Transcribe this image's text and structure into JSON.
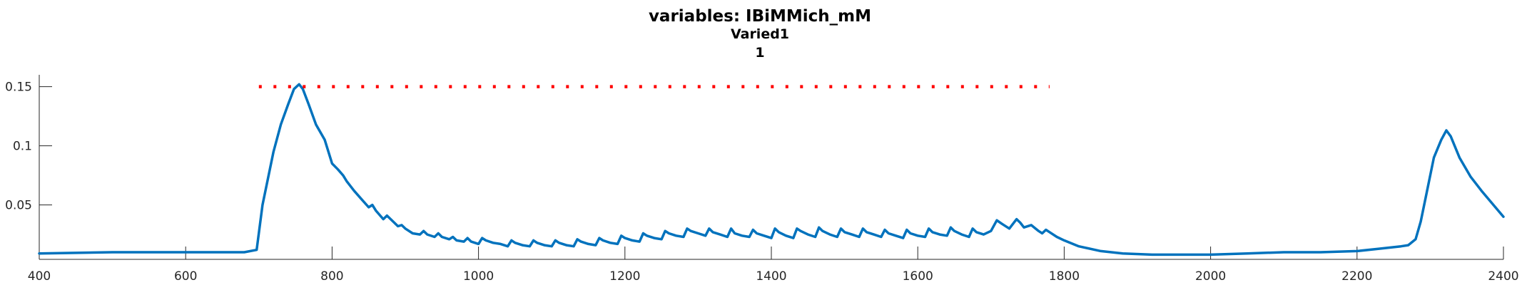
{
  "chart_data": {
    "type": "line",
    "title": [
      "variables: IBiMMich_mM",
      "Varied1",
      "1"
    ],
    "xlabel": "",
    "ylabel": "",
    "xlim": [
      400,
      2400
    ],
    "ylim": [
      0.004,
      0.16
    ],
    "xticks": [
      400,
      600,
      800,
      1000,
      1200,
      1400,
      1600,
      1800,
      2000,
      2200,
      2400
    ],
    "xtick_labels": [
      "400",
      "600",
      "800",
      "1000",
      "1200",
      "1400",
      "1600",
      "1800",
      "2000",
      "2200",
      "2400"
    ],
    "yticks": [
      0.05,
      0.1,
      0.15
    ],
    "ytick_labels": [
      "0.05",
      "0.1",
      "0.15"
    ],
    "grid": false,
    "colors": {
      "series": "#0072BD",
      "reference": "#FF0000",
      "axis": "#262626"
    },
    "series": [
      {
        "style": "solid",
        "x": [
          400,
          500,
          600,
          680,
          697,
          705,
          720,
          730,
          740,
          748,
          755,
          760,
          768,
          778,
          790,
          800,
          808,
          815,
          820,
          830,
          840,
          850,
          855,
          860,
          870,
          875,
          880,
          890,
          895,
          900,
          910,
          920,
          925,
          930,
          940,
          945,
          950,
          960,
          965,
          970,
          980,
          985,
          990,
          1000,
          1005,
          1010,
          1020,
          1030,
          1040,
          1045,
          1050,
          1060,
          1070,
          1075,
          1080,
          1090,
          1100,
          1105,
          1110,
          1120,
          1130,
          1135,
          1140,
          1150,
          1160,
          1165,
          1170,
          1180,
          1190,
          1195,
          1200,
          1210,
          1220,
          1225,
          1230,
          1240,
          1250,
          1255,
          1260,
          1270,
          1280,
          1285,
          1290,
          1300,
          1310,
          1315,
          1320,
          1330,
          1340,
          1345,
          1350,
          1360,
          1370,
          1375,
          1380,
          1390,
          1400,
          1405,
          1410,
          1420,
          1430,
          1435,
          1440,
          1450,
          1460,
          1465,
          1470,
          1480,
          1490,
          1495,
          1500,
          1510,
          1520,
          1525,
          1530,
          1540,
          1550,
          1555,
          1560,
          1570,
          1580,
          1585,
          1590,
          1600,
          1610,
          1615,
          1620,
          1630,
          1640,
          1645,
          1650,
          1660,
          1670,
          1675,
          1680,
          1690,
          1700,
          1708,
          1715,
          1725,
          1735,
          1740,
          1745,
          1755,
          1765,
          1770,
          1775,
          1780,
          1790,
          1800,
          1820,
          1850,
          1880,
          1920,
          1960,
          2000,
          2050,
          2100,
          2150,
          2200,
          2230,
          2260,
          2270,
          2280,
          2287,
          2295,
          2305,
          2315,
          2322,
          2328,
          2340,
          2355,
          2370,
          2385,
          2400
        ],
        "y": [
          0.009,
          0.01,
          0.01,
          0.01,
          0.012,
          0.05,
          0.095,
          0.118,
          0.135,
          0.148,
          0.152,
          0.148,
          0.135,
          0.118,
          0.105,
          0.085,
          0.08,
          0.075,
          0.07,
          0.062,
          0.055,
          0.048,
          0.05,
          0.045,
          0.038,
          0.041,
          0.038,
          0.032,
          0.033,
          0.03,
          0.026,
          0.025,
          0.028,
          0.025,
          0.023,
          0.026,
          0.023,
          0.021,
          0.023,
          0.02,
          0.019,
          0.022,
          0.019,
          0.017,
          0.022,
          0.02,
          0.018,
          0.017,
          0.015,
          0.02,
          0.018,
          0.016,
          0.015,
          0.02,
          0.018,
          0.016,
          0.015,
          0.02,
          0.018,
          0.016,
          0.015,
          0.021,
          0.019,
          0.017,
          0.016,
          0.022,
          0.02,
          0.018,
          0.017,
          0.024,
          0.022,
          0.02,
          0.019,
          0.026,
          0.024,
          0.022,
          0.021,
          0.028,
          0.026,
          0.024,
          0.023,
          0.03,
          0.028,
          0.026,
          0.024,
          0.03,
          0.027,
          0.025,
          0.023,
          0.03,
          0.026,
          0.024,
          0.023,
          0.029,
          0.026,
          0.024,
          0.022,
          0.03,
          0.027,
          0.024,
          0.022,
          0.03,
          0.028,
          0.025,
          0.023,
          0.031,
          0.028,
          0.025,
          0.023,
          0.03,
          0.027,
          0.025,
          0.023,
          0.03,
          0.027,
          0.025,
          0.023,
          0.029,
          0.026,
          0.024,
          0.022,
          0.029,
          0.026,
          0.024,
          0.023,
          0.03,
          0.027,
          0.025,
          0.024,
          0.031,
          0.028,
          0.025,
          0.023,
          0.03,
          0.027,
          0.025,
          0.028,
          0.037,
          0.034,
          0.03,
          0.038,
          0.035,
          0.031,
          0.033,
          0.028,
          0.026,
          0.029,
          0.027,
          0.023,
          0.02,
          0.015,
          0.011,
          0.009,
          0.008,
          0.008,
          0.008,
          0.009,
          0.01,
          0.01,
          0.011,
          0.013,
          0.015,
          0.016,
          0.021,
          0.036,
          0.06,
          0.09,
          0.105,
          0.113,
          0.108,
          0.09,
          0.074,
          0.062,
          0.051,
          0.04
        ]
      },
      {
        "style": "dotted",
        "x": [
          700,
          1780
        ],
        "y": [
          0.15,
          0.15
        ]
      }
    ]
  }
}
